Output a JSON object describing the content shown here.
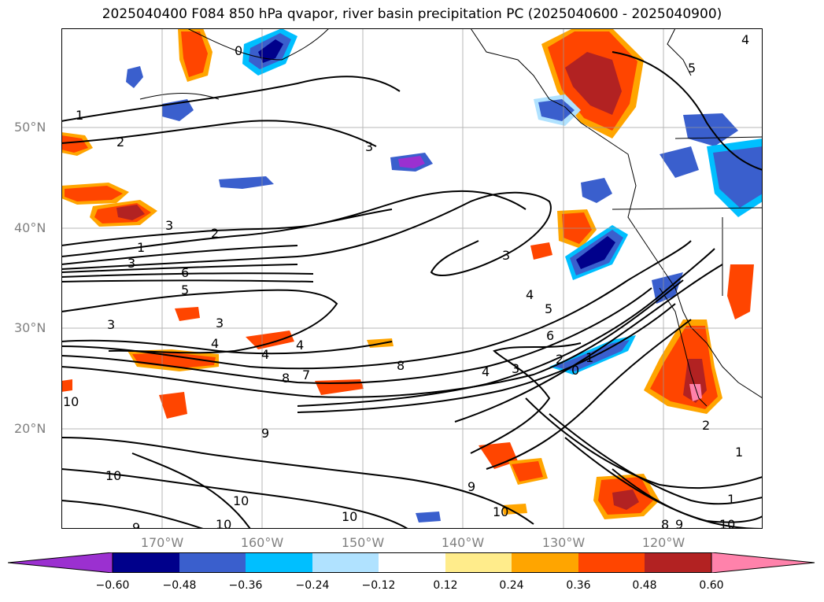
{
  "title": "2025040400 F084 850 hPa qvapor, river basin precipitation PC (2025040600 - 2025040900)",
  "lat_labels": [
    "50°N",
    "40°N",
    "30°N",
    "20°N"
  ],
  "lon_labels": [
    "170°W",
    "160°W",
    "150°W",
    "140°W",
    "130°W",
    "120°W"
  ],
  "colorbar": {
    "ticks": [
      "−0.60",
      "−0.48",
      "−0.36",
      "−0.24",
      "−0.12",
      "0.12",
      "0.24",
      "0.36",
      "0.48",
      "0.60"
    ],
    "colors": [
      "#9b30d0",
      "#00008b",
      "#3a5fcd",
      "#00bfff",
      "#b0e2ff",
      "#ffffff",
      "#ffec8b",
      "#ffa500",
      "#ff4500",
      "#b22222",
      "#ff82ab"
    ]
  },
  "contour_labels": [
    "1",
    "2",
    "3",
    "2",
    "1",
    "3",
    "6",
    "5",
    "3",
    "3",
    "4",
    "4",
    "4",
    "8",
    "7",
    "8",
    "5",
    "6",
    "4",
    "3",
    "2",
    "0",
    "1",
    "9",
    "10",
    "9",
    "10",
    "10",
    "10",
    "10",
    "9",
    "10",
    "1",
    "2",
    "4",
    "5",
    "3",
    "0",
    "4",
    "3",
    "8",
    "9",
    "10",
    "1"
  ]
}
